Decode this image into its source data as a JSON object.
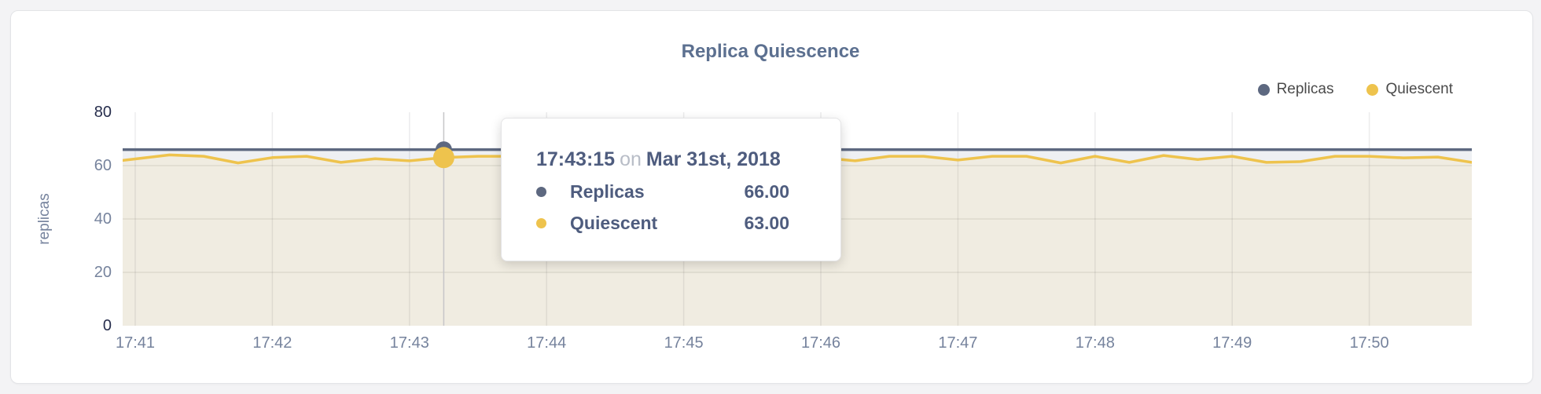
{
  "page": {
    "title": "Replica Quiescence"
  },
  "chart_data": {
    "type": "line",
    "title": "Replica Quiescence",
    "xlabel": "",
    "ylabel": "replicas",
    "ylim": [
      0,
      80
    ],
    "yticks": [
      0,
      20,
      40,
      60,
      80
    ],
    "xticks": [
      "17:41",
      "17:42",
      "17:43",
      "17:44",
      "17:45",
      "17:46",
      "17:47",
      "17:48",
      "17:49",
      "17:50"
    ],
    "grid": true,
    "legend_position": "top-right",
    "x": [
      "17:40:45",
      "17:41:00",
      "17:41:15",
      "17:41:30",
      "17:41:45",
      "17:42:00",
      "17:42:15",
      "17:42:30",
      "17:42:45",
      "17:43:00",
      "17:43:15",
      "17:43:30",
      "17:43:45",
      "17:44:00",
      "17:44:15",
      "17:44:30",
      "17:44:45",
      "17:45:00",
      "17:45:15",
      "17:45:30",
      "17:45:45",
      "17:46:00",
      "17:46:15",
      "17:46:30",
      "17:46:45",
      "17:47:00",
      "17:47:15",
      "17:47:30",
      "17:47:45",
      "17:48:00",
      "17:48:15",
      "17:48:30",
      "17:48:45",
      "17:49:00",
      "17:49:15",
      "17:49:30",
      "17:49:45",
      "17:50:00",
      "17:50:15",
      "17:50:30",
      "17:50:45"
    ],
    "series": [
      {
        "name": "Replicas",
        "color": "#5d6880",
        "area_fill": "#eef0f3",
        "values": [
          66,
          66,
          66,
          66,
          66,
          66,
          66,
          66,
          66,
          66,
          66,
          66,
          66,
          66,
          66,
          66,
          66,
          66,
          66,
          66,
          66,
          66,
          66,
          66,
          66,
          66,
          66,
          66,
          66,
          66,
          66,
          66,
          66,
          66,
          66,
          66,
          66,
          66,
          66,
          66,
          66
        ]
      },
      {
        "name": "Quiescent",
        "color": "#eec34d",
        "area_fill": "#f0ece1",
        "values": [
          61.0,
          62.5,
          64.0,
          63.5,
          61.0,
          63.0,
          63.5,
          61.2,
          62.6,
          61.8,
          63.0,
          63.5,
          63.5,
          62.0,
          63.5,
          63.5,
          61.5,
          63.0,
          63.5,
          62.0,
          63.5,
          63.0,
          61.8,
          63.5,
          63.5,
          62.1,
          63.5,
          63.5,
          61.0,
          63.5,
          61.2,
          63.8,
          62.3,
          63.5,
          61.2,
          61.5,
          63.5,
          63.5,
          62.9,
          63.2,
          61.2
        ]
      }
    ]
  },
  "hover": {
    "time": "17:43:15"
  },
  "tooltip": {
    "time": "17:43:15",
    "connector": "on",
    "date": "Mar 31st, 2018",
    "rows": [
      {
        "label": "Replicas",
        "value": "66.00",
        "color": "#5d6880"
      },
      {
        "label": "Quiescent",
        "value": "63.00",
        "color": "#eec34d"
      }
    ]
  },
  "colors": {
    "title": "#5c7090",
    "axis_tick": "#76839d",
    "axis_tick_emphasis": "#272e4d",
    "legend_text": "#4a4a4a",
    "replicas_line": "#5d6880",
    "quiescent_line": "#eec34d",
    "replicas_fill": "#eef0f3",
    "quiescent_fill": "#f0ece1",
    "crosshair": "#c6c6c8",
    "card_bg": "#ffffff",
    "page_bg": "#f3f3f5",
    "tooltip_text": "#4e5c7e",
    "tooltip_muted": "#b8bdc7"
  }
}
